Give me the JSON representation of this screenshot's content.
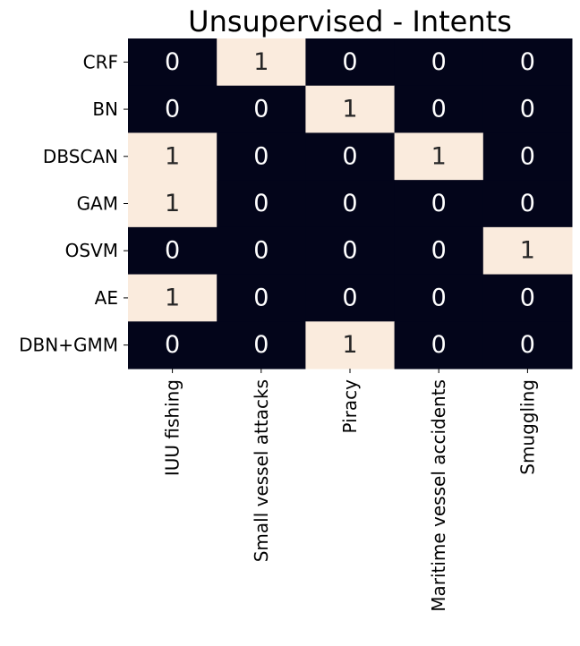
{
  "chart_data": {
    "type": "heatmap",
    "title": "Unsupervised - Intents",
    "xlabel": "",
    "ylabel": "",
    "x_categories": [
      "IUU fishing",
      "Small vessel attacks",
      "Piracy",
      "Maritime vessel accidents",
      "Smuggling"
    ],
    "y_categories": [
      "CRF",
      "BN",
      "DBSCAN",
      "GAM",
      "OSVM",
      "AE",
      "DBN+GMM"
    ],
    "values": [
      [
        0,
        1,
        0,
        0,
        0
      ],
      [
        0,
        0,
        1,
        0,
        0
      ],
      [
        1,
        0,
        0,
        1,
        0
      ],
      [
        1,
        0,
        0,
        0,
        0
      ],
      [
        0,
        0,
        0,
        0,
        1
      ],
      [
        1,
        0,
        0,
        0,
        0
      ],
      [
        0,
        0,
        1,
        0,
        0
      ]
    ],
    "value_range": [
      0,
      1
    ],
    "annotations": true,
    "colorbar": false,
    "colors": {
      "low": "#03051a",
      "high": "#faebdd",
      "low_text": "#ffffff",
      "high_text": "#262626"
    }
  }
}
